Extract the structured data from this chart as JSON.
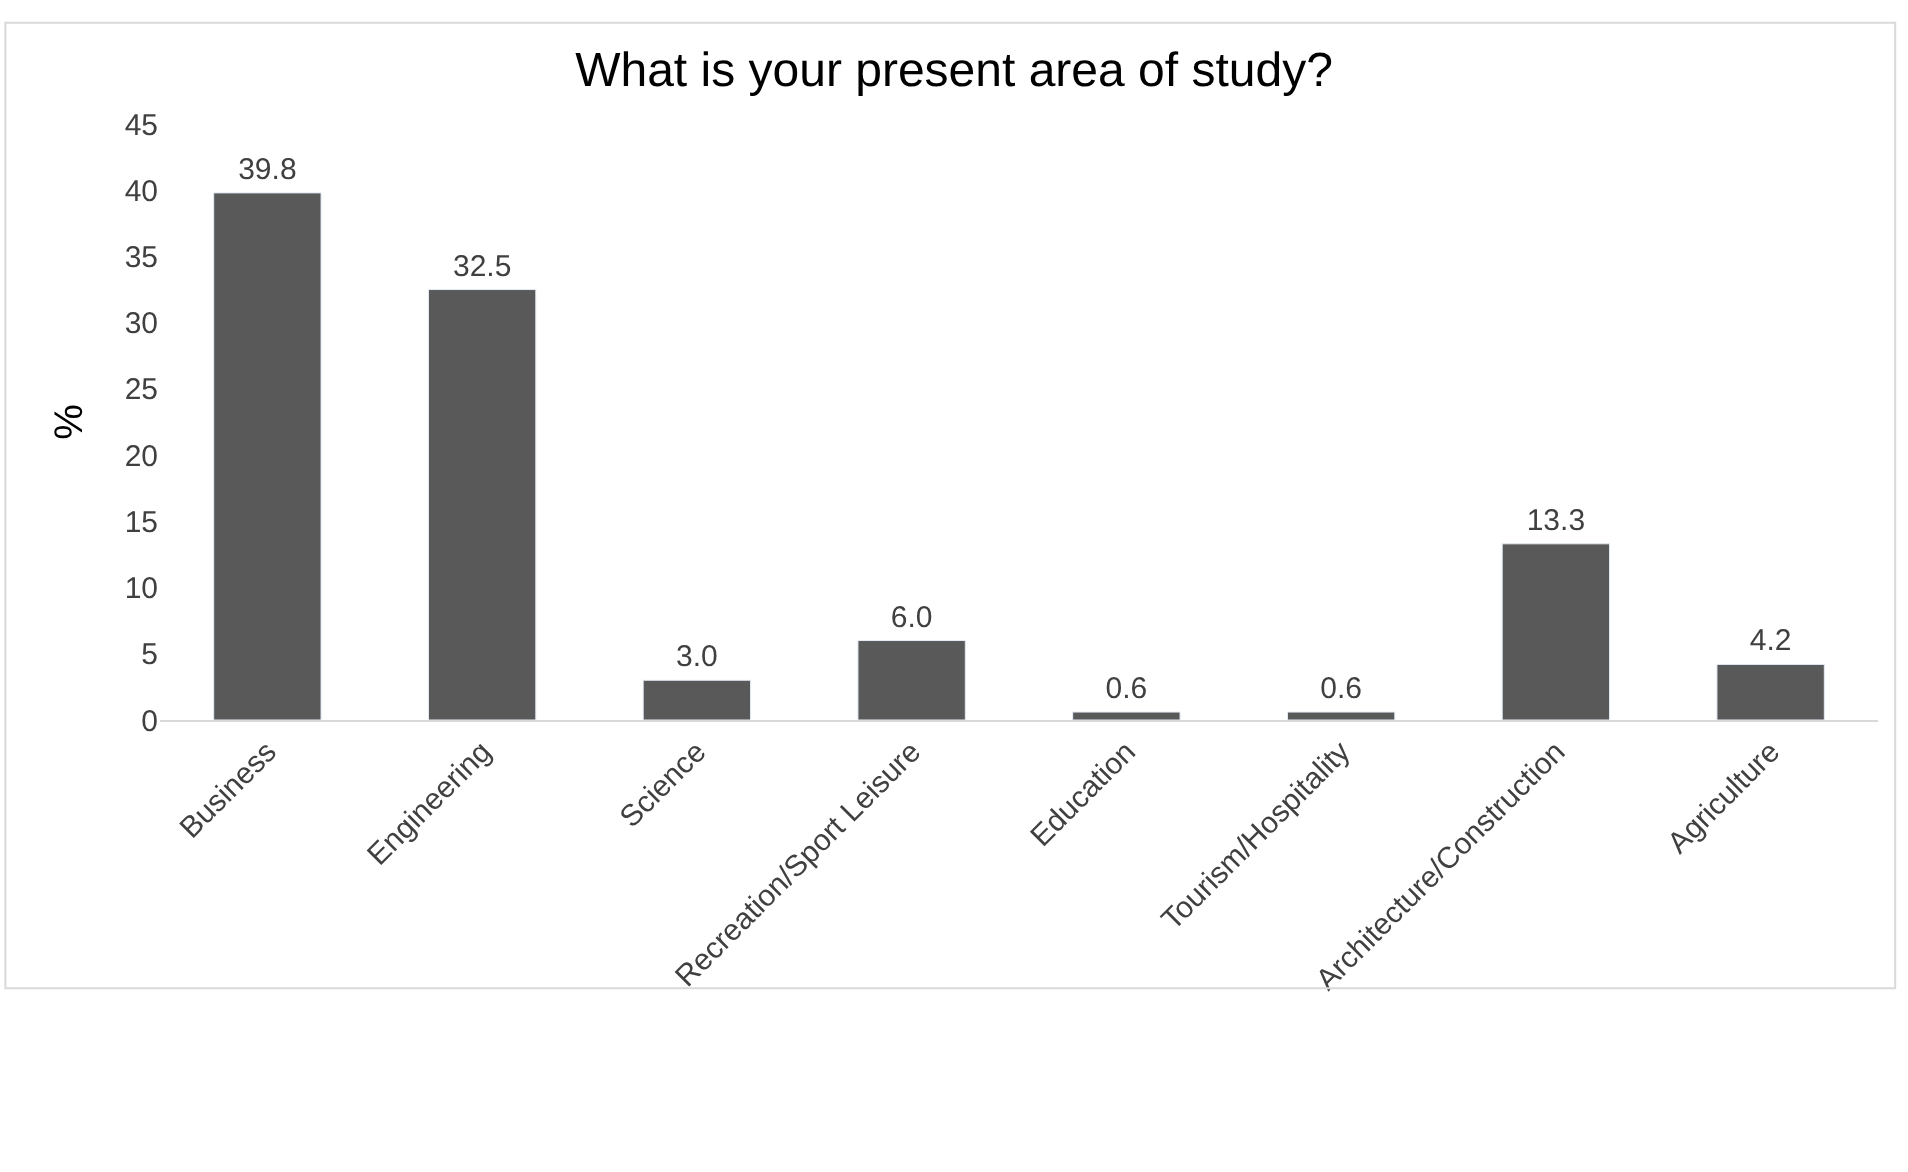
{
  "chart_data": {
    "type": "bar",
    "title": "What is your present area of study?",
    "ylabel": "%",
    "categories": [
      "Business",
      "Engineering",
      "Science",
      "Recreation/Sport Leisure",
      "Education",
      "Tourism/Hospitality",
      "Architecture/Construction",
      "Agriculture"
    ],
    "values": [
      39.8,
      32.5,
      3.0,
      6.0,
      0.6,
      0.6,
      13.3,
      4.2
    ],
    "value_labels": [
      "39.8",
      "32.5",
      "3.0",
      "6.0",
      "0.6",
      "0.6",
      "13.3",
      "4.2"
    ],
    "color": "#595959",
    "ylim": [
      0,
      45
    ],
    "yticks": [
      0,
      5,
      10,
      15,
      20,
      25,
      30,
      35,
      40,
      45
    ],
    "grid": false,
    "legend": false
  }
}
